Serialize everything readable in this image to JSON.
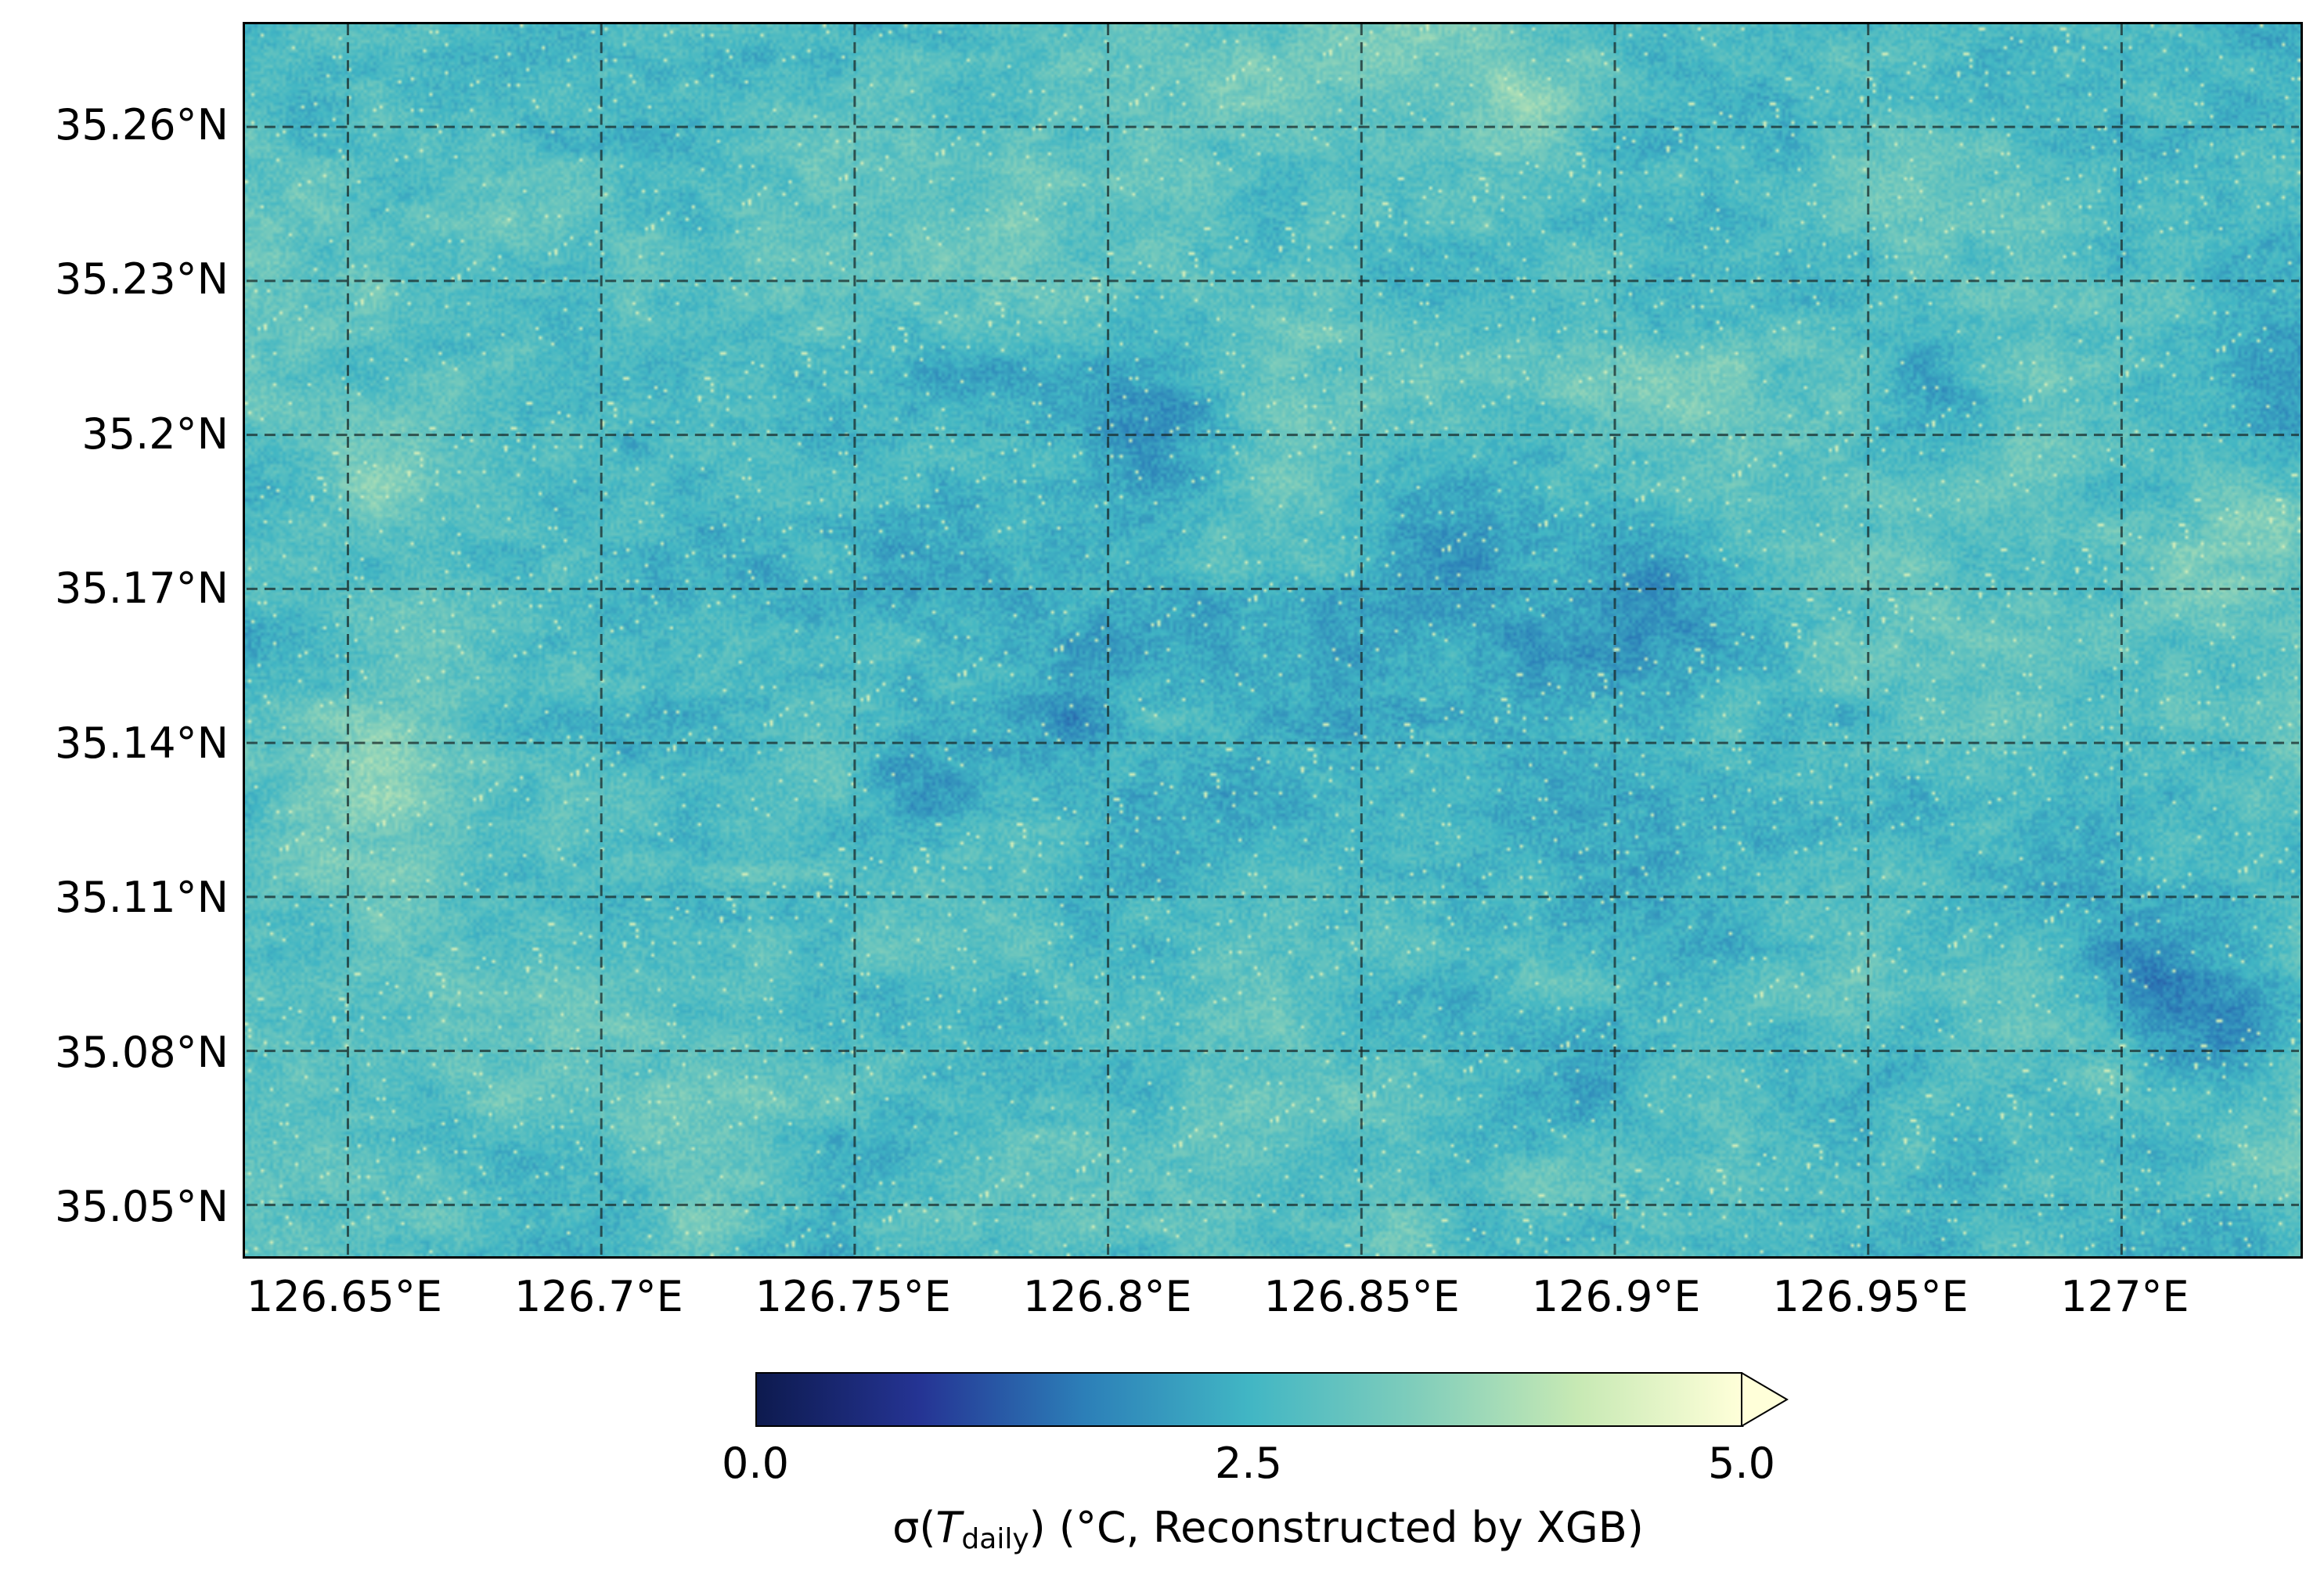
{
  "map": {
    "lon_range": [
      126.63,
      127.035
    ],
    "lat_range": [
      35.04,
      35.28
    ],
    "gridlines": true,
    "gridline_style": "dashed",
    "lat_ticks": [
      {
        "value": 35.26,
        "label": "35.26°N"
      },
      {
        "value": 35.23,
        "label": "35.23°N"
      },
      {
        "value": 35.2,
        "label": "35.2°N"
      },
      {
        "value": 35.17,
        "label": "35.17°N"
      },
      {
        "value": 35.14,
        "label": "35.14°N"
      },
      {
        "value": 35.11,
        "label": "35.11°N"
      },
      {
        "value": 35.08,
        "label": "35.08°N"
      },
      {
        "value": 35.05,
        "label": "35.05°N"
      }
    ],
    "lon_ticks": [
      {
        "value": 126.65,
        "label": "126.65°E"
      },
      {
        "value": 126.7,
        "label": "126.7°E"
      },
      {
        "value": 126.75,
        "label": "126.75°E"
      },
      {
        "value": 126.8,
        "label": "126.8°E"
      },
      {
        "value": 126.85,
        "label": "126.85°E"
      },
      {
        "value": 126.9,
        "label": "126.9°E"
      },
      {
        "value": 126.95,
        "label": "126.95°E"
      },
      {
        "value": 127.0,
        "label": "127°E"
      }
    ],
    "colormap": "YlGnBu_r",
    "colormap_stops": [
      "#0d1a4e",
      "#253494",
      "#2c7fb8",
      "#41b6c4",
      "#7fcdbb",
      "#c7e9b4",
      "#ffffd9"
    ]
  },
  "colorbar": {
    "min": 0.0,
    "max": 5.0,
    "extend": "max",
    "ticks": [
      {
        "value": 0.0,
        "label": "0.0"
      },
      {
        "value": 2.5,
        "label": "2.5"
      },
      {
        "value": 5.0,
        "label": "5.0"
      }
    ],
    "label_symbol": "σ(",
    "label_var": "T",
    "label_sub": "daily",
    "label_rest": ") (°C, Reconstructed by XGB)"
  }
}
